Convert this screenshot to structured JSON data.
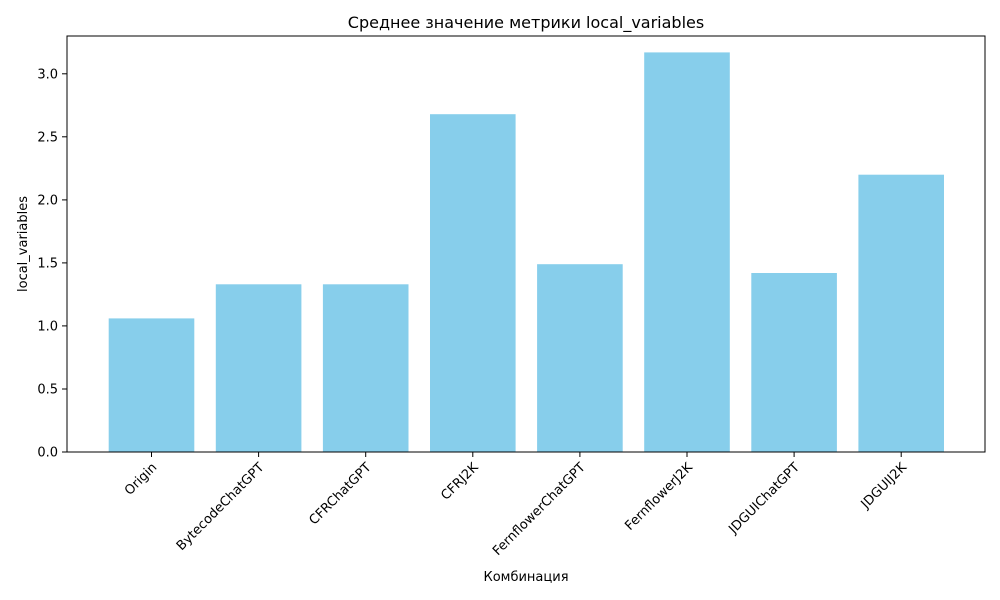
{
  "chart_data": {
    "type": "bar",
    "title": "Среднее значение метрики local_variables",
    "xlabel": "Комбинация",
    "ylabel": "local_variables",
    "categories": [
      "Origin",
      "BytecodeChatGPT",
      "CFRChatGPT",
      "CFRJ2K",
      "FernflowerChatGPT",
      "FernflowerJ2K",
      "JDGUIChatGPT",
      "JDGUIJ2K"
    ],
    "values": [
      1.06,
      1.33,
      1.33,
      2.68,
      1.49,
      3.17,
      1.42,
      2.2
    ],
    "ylim": [
      0,
      3.3
    ],
    "yticks": [
      "0.0",
      "0.5",
      "1.0",
      "1.5",
      "2.0",
      "2.5",
      "3.0"
    ],
    "bar_color": "#87CEEB",
    "grid": false,
    "legend": false
  }
}
